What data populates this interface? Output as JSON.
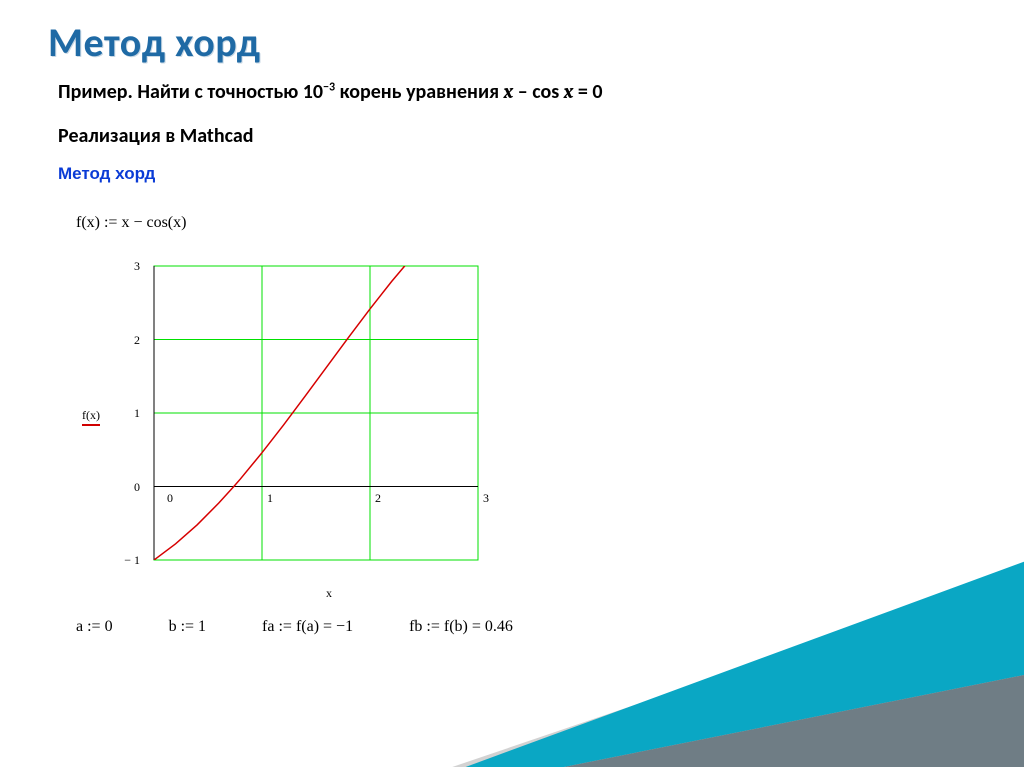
{
  "title": "Метод хорд",
  "example": {
    "prefix": "Пример. Найти с точностью 10",
    "exp": "−3",
    "mid": " корень уравнения ",
    "eq_x": "x",
    "eq_minus": " – cos ",
    "eq_x2": "x",
    "eq_tail": " = 0"
  },
  "impl": "Реализация в Mathcad",
  "subhead": "Метод хорд",
  "fxdef": "f(x) := x − cos(x)",
  "chart": {
    "type": "line",
    "xlim": [
      0,
      3
    ],
    "ylim": [
      -1,
      3
    ],
    "xticks": [
      0,
      1,
      2,
      3
    ],
    "yticks": [
      -1,
      0,
      1,
      2,
      3
    ],
    "grid_color": "#00e000",
    "axis_color": "#000000",
    "line_color": "#d60000",
    "line_width": 1.5,
    "background": "#ffffff",
    "ylabel": "f(x)",
    "xlabel": "x",
    "series": [
      {
        "x": 0.0,
        "y": -1.0
      },
      {
        "x": 0.2,
        "y": -0.78
      },
      {
        "x": 0.4,
        "y": -0.521
      },
      {
        "x": 0.6,
        "y": -0.225
      },
      {
        "x": 0.739,
        "y": 0.0
      },
      {
        "x": 0.8,
        "y": 0.103
      },
      {
        "x": 1.0,
        "y": 0.46
      },
      {
        "x": 1.2,
        "y": 0.838
      },
      {
        "x": 1.4,
        "y": 1.23
      },
      {
        "x": 1.6,
        "y": 1.629
      },
      {
        "x": 1.8,
        "y": 2.027
      },
      {
        "x": 2.0,
        "y": 2.416
      },
      {
        "x": 2.2,
        "y": 2.789
      },
      {
        "x": 2.35,
        "y": 3.05
      }
    ]
  },
  "assigns": {
    "a": "a := 0",
    "b": "b := 1",
    "fa": "fa := f(a) = −1",
    "fb": "fb := f(b) = 0.46"
  },
  "decor": {
    "top_fill": "#0aa7c4",
    "bot_fill": "#6f7d85",
    "shadow": "#d2d2d2"
  }
}
